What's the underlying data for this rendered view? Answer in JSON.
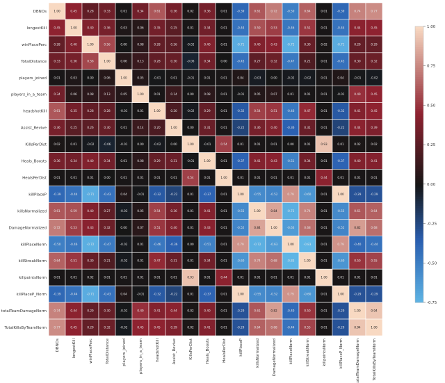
{
  "chart_data": {
    "type": "heatmap",
    "title": "",
    "labels": [
      "DBNOs",
      "longestKill",
      "winPlacePerc",
      "TotalDistance",
      "players_joined",
      "players_in_a_team",
      "headshotKill",
      "Assist_Revive",
      "KillsPerDist",
      "Heals_Boosts",
      "HealsPerDist",
      "killPlaceP",
      "killsNormalized",
      "DamageNormalized",
      "killPlaceNorm",
      "killStreakNorm",
      "killpointsNorm",
      "killPlaceP_Norm",
      "totalTeamDamageNorm",
      "TotalKillsByTeamNorm"
    ],
    "values": [
      [
        1.0,
        0.45,
        0.28,
        0.33,
        0.01,
        0.34,
        0.61,
        0.36,
        0.02,
        0.36,
        0.01,
        -0.39,
        0.61,
        0.72,
        -0.5,
        0.64,
        0.01,
        -0.39,
        0.74,
        0.77
      ],
      [
        0.45,
        1.0,
        0.4,
        0.36,
        0.03,
        0.06,
        0.35,
        0.25,
        0.01,
        0.34,
        0.01,
        -0.44,
        0.59,
        0.53,
        -0.46,
        0.51,
        0.01,
        -0.44,
        0.44,
        0.45
      ],
      [
        0.28,
        0.4,
        1.0,
        0.56,
        0.0,
        0.08,
        0.28,
        0.26,
        -0.02,
        0.4,
        0.01,
        -0.71,
        0.4,
        0.43,
        -0.72,
        0.3,
        0.02,
        -0.71,
        0.29,
        0.29
      ],
      [
        0.33,
        0.36,
        0.56,
        1.0,
        0.06,
        0.13,
        0.28,
        0.3,
        -0.06,
        0.34,
        0.0,
        -0.43,
        0.27,
        0.32,
        -0.47,
        0.21,
        0.01,
        -0.43,
        0.3,
        0.32
      ],
      [
        0.01,
        0.03,
        0.0,
        0.06,
        1.0,
        0.05,
        -0.01,
        0.01,
        -0.01,
        0.01,
        0.01,
        0.04,
        -0.03,
        -0.0,
        -0.02,
        -0.02,
        0.01,
        0.04,
        -0.01,
        -0.02
      ],
      [
        0.34,
        0.06,
        0.08,
        0.13,
        0.05,
        1.0,
        0.01,
        0.14,
        0.0,
        0.08,
        0.01,
        -0.01,
        0.05,
        0.07,
        0.01,
        0.01,
        0.01,
        -0.01,
        0.49,
        0.45
      ],
      [
        0.61,
        0.35,
        0.28,
        0.28,
        -0.01,
        0.01,
        1.0,
        0.2,
        -0.02,
        0.29,
        0.01,
        -0.32,
        0.54,
        0.51,
        -0.46,
        0.47,
        0.01,
        -0.32,
        0.41,
        0.45
      ],
      [
        0.36,
        0.25,
        0.26,
        0.3,
        0.01,
        0.14,
        0.2,
        1.0,
        0.0,
        0.31,
        0.01,
        -0.22,
        0.36,
        0.4,
        -0.36,
        0.31,
        0.01,
        -0.22,
        0.44,
        0.39
      ],
      [
        0.02,
        0.01,
        -0.02,
        -0.06,
        -0.01,
        0.0,
        -0.02,
        0.0,
        1.0,
        -0.01,
        0.54,
        0.01,
        0.01,
        0.01,
        0.0,
        0.01,
        0.93,
        0.01,
        0.02,
        0.02
      ],
      [
        0.36,
        0.34,
        0.4,
        0.34,
        0.01,
        0.08,
        0.29,
        0.31,
        -0.01,
        1.0,
        0.01,
        -0.37,
        0.41,
        0.43,
        -0.51,
        0.34,
        0.01,
        -0.37,
        0.4,
        0.41
      ],
      [
        0.01,
        0.01,
        0.01,
        0.0,
        0.01,
        0.01,
        0.01,
        0.01,
        0.54,
        0.01,
        1.0,
        0.01,
        0.01,
        0.01,
        0.01,
        0.01,
        0.44,
        0.01,
        0.01,
        0.01
      ],
      [
        -0.39,
        -0.44,
        -0.71,
        -0.43,
        0.04,
        -0.01,
        -0.32,
        -0.22,
        0.01,
        -0.37,
        0.01,
        1.0,
        -0.55,
        -0.52,
        0.79,
        -0.6,
        0.01,
        1.0,
        -0.29,
        -0.29
      ],
      [
        0.61,
        0.59,
        0.4,
        0.27,
        -0.03,
        0.05,
        0.54,
        0.36,
        0.01,
        0.41,
        0.01,
        -0.55,
        1.0,
        0.84,
        -0.72,
        0.74,
        0.01,
        -0.55,
        0.61,
        0.64
      ],
      [
        0.72,
        0.53,
        0.43,
        0.32,
        -0.0,
        0.07,
        0.51,
        0.4,
        0.01,
        0.43,
        0.01,
        -0.52,
        0.84,
        1.0,
        -0.63,
        0.68,
        0.01,
        -0.52,
        0.82,
        0.68
      ],
      [
        -0.5,
        -0.46,
        -0.72,
        -0.47,
        -0.02,
        0.01,
        -0.46,
        -0.36,
        0.0,
        -0.51,
        0.01,
        0.79,
        -0.72,
        -0.63,
        1.0,
        -0.83,
        0.01,
        0.79,
        -0.4,
        -0.44
      ],
      [
        0.64,
        0.51,
        0.3,
        0.21,
        -0.02,
        0.01,
        0.47,
        0.31,
        0.01,
        0.34,
        0.01,
        -0.6,
        0.74,
        0.68,
        -0.83,
        1.0,
        0.01,
        -0.6,
        0.5,
        0.55
      ],
      [
        0.01,
        0.01,
        0.02,
        0.01,
        0.01,
        0.01,
        0.01,
        0.01,
        0.93,
        0.01,
        0.44,
        0.01,
        0.01,
        0.01,
        0.01,
        0.01,
        1.0,
        0.01,
        0.01,
        0.01
      ],
      [
        -0.39,
        -0.44,
        -0.71,
        -0.43,
        0.04,
        -0.01,
        -0.32,
        -0.22,
        0.01,
        -0.37,
        0.01,
        1.0,
        -0.55,
        -0.52,
        0.79,
        -0.6,
        0.01,
        1.0,
        -0.29,
        -0.29
      ],
      [
        0.74,
        0.44,
        0.29,
        0.3,
        -0.01,
        0.49,
        0.41,
        0.44,
        0.02,
        0.4,
        0.01,
        -0.29,
        0.61,
        0.82,
        -0.4,
        0.5,
        0.01,
        -0.29,
        1.0,
        0.94
      ],
      [
        0.77,
        0.45,
        0.29,
        0.32,
        -0.02,
        0.45,
        0.45,
        0.39,
        0.02,
        0.41,
        0.01,
        -0.29,
        0.64,
        0.68,
        -0.44,
        0.55,
        0.01,
        -0.29,
        0.94,
        1.0
      ]
    ],
    "vmin": -0.75,
    "vmax": 1.0,
    "colorbar_ticks": [
      "1.00",
      "0.75",
      "0.50",
      "0.25",
      "0.00",
      "-0.25",
      "-0.50",
      "-0.75"
    ],
    "colormap": {
      "low": "#5fb5e5",
      "mid_low": "#2a5fb0",
      "mid": "#161616",
      "mid_high": "#8e2230",
      "high": "#f8d9c2"
    }
  }
}
